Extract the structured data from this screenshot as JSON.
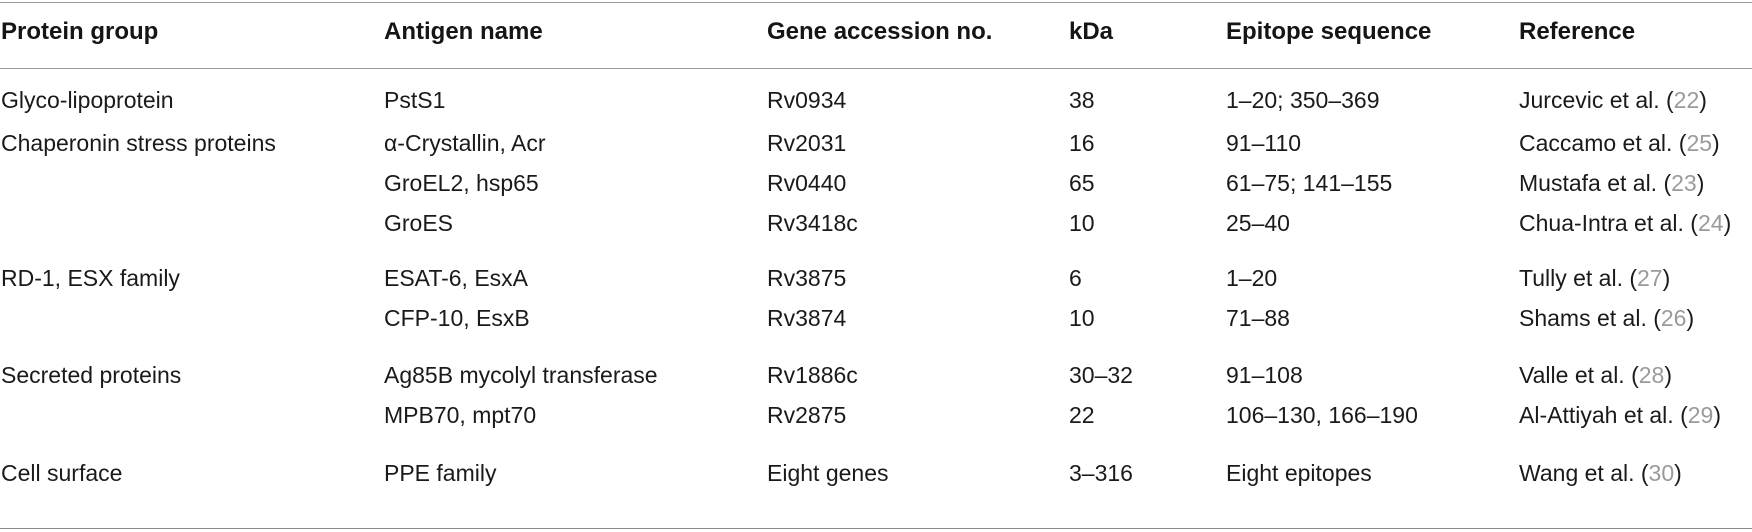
{
  "table": {
    "headers": [
      "Protein group",
      "Antigen name",
      "Gene accession no.",
      "kDa",
      "Epitope sequence",
      "Reference"
    ],
    "rows": [
      {
        "group": "Glyco-lipoprotein",
        "antigen": "PstS1",
        "gene": "Rv0934",
        "kda": "38",
        "epitope": "1–20; 350–369",
        "ref_author": "Jurcevic et al. (",
        "ref_num": "22",
        "ref_close": ")"
      },
      {
        "group": "Chaperonin stress proteins",
        "antigen": "α-Crystallin, Acr",
        "gene": "Rv2031",
        "kda": "16",
        "epitope": "91–110",
        "ref_author": "Caccamo et al. (",
        "ref_num": "25",
        "ref_close": ")"
      },
      {
        "group": "",
        "antigen": "GroEL2, hsp65",
        "gene": "Rv0440",
        "kda": "65",
        "epitope": "61–75; 141–155",
        "ref_author": "Mustafa et al. (",
        "ref_num": "23",
        "ref_close": ")"
      },
      {
        "group": "",
        "antigen": "GroES",
        "gene": "Rv3418c",
        "kda": "10",
        "epitope": "25–40",
        "ref_author": "Chua-Intra et al. (",
        "ref_num": "24",
        "ref_close": ")"
      },
      {
        "group": "RD-1, ESX family",
        "antigen": "ESAT-6, EsxA",
        "gene": "Rv3875",
        "kda": "6",
        "epitope": "1–20",
        "ref_author": "Tully et al. (",
        "ref_num": "27",
        "ref_close": ")"
      },
      {
        "group": "",
        "antigen": "CFP-10, EsxB",
        "gene": "Rv3874",
        "kda": "10",
        "epitope": "71–88",
        "ref_author": "Shams et al. (",
        "ref_num": "26",
        "ref_close": ")"
      },
      {
        "group": "Secreted proteins",
        "antigen": "Ag85B mycolyl transferase",
        "gene": "Rv1886c",
        "kda": "30–32",
        "epitope": "91–108",
        "ref_author": "Valle et al. (",
        "ref_num": "28",
        "ref_close": ")"
      },
      {
        "group": "",
        "antigen": "MPB70, mpt70",
        "gene": "Rv2875",
        "kda": "22",
        "epitope": "106–130, 166–190",
        "ref_author": "Al-Attiyah et al. (",
        "ref_num": "29",
        "ref_close": ")"
      },
      {
        "group": "Cell surface",
        "antigen": "PPE family",
        "gene": "Eight genes",
        "kda": "3–316",
        "epitope": "Eight epitopes",
        "ref_author": "Wang et al. (",
        "ref_num": "30",
        "ref_close": ")"
      }
    ]
  },
  "colors": {
    "text": "#1a1a1a",
    "reference_number": "#9a9a9a",
    "rule": "#9a9a9a"
  }
}
